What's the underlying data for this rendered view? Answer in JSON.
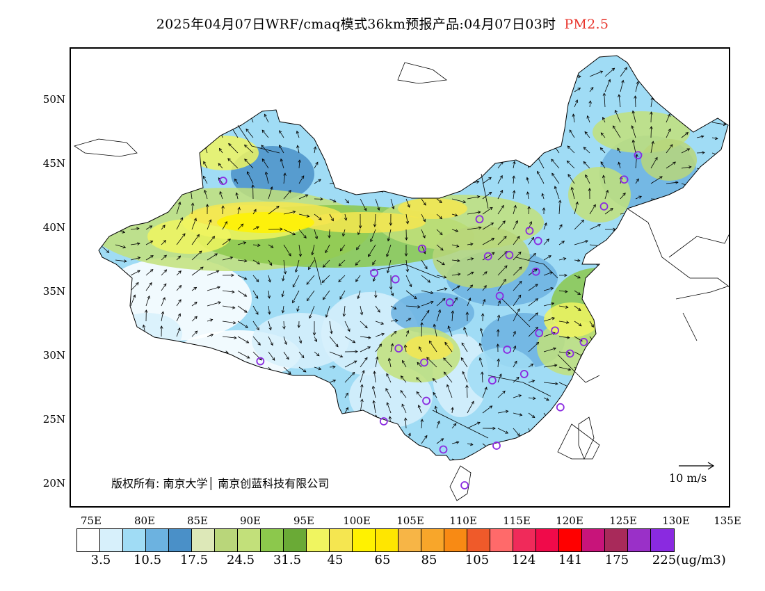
{
  "title": {
    "main": "2025年04月07日WRF/cmaq模式36km预报产品:04月07日03时",
    "variable": "PM2.5",
    "variable_color": "#e8332a"
  },
  "axes": {
    "lat_labels": [
      "50N",
      "45N",
      "40N",
      "35N",
      "30N",
      "25N",
      "20N"
    ],
    "lon_labels": [
      "75E",
      "80E",
      "85E",
      "90E",
      "95E",
      "100E",
      "105E",
      "110E",
      "115E",
      "120E",
      "125E",
      "130E",
      "135E"
    ]
  },
  "legend": {
    "colors": [
      "#ffffff",
      "#d7f0fb",
      "#a0dcf5",
      "#6cb2e0",
      "#4a90c8",
      "#dde8b8",
      "#b9d67a",
      "#c2e07a",
      "#8cc84c",
      "#6aaa36",
      "#f0f560",
      "#f5e650",
      "#fff200",
      "#ffe600",
      "#f7b546",
      "#f8a62a",
      "#f88a14",
      "#ef5a2a",
      "#ff6a6a",
      "#f02a5a",
      "#f00a4a",
      "#ff0000",
      "#c8147a",
      "#a82a5a",
      "#9a30c8",
      "#8a2ae0"
    ],
    "labels": [
      "3.5",
      "10.5",
      "17.5",
      "24.5",
      "31.5",
      "45",
      "65",
      "85",
      "105",
      "124",
      "141",
      "175",
      "225"
    ],
    "unit": "(ug/m3)"
  },
  "copyright": "版权所有: 南京大学│ 南京创蓝科技有限公司",
  "wind_scale": {
    "label": "10 m/s"
  },
  "stations": [
    {
      "lon": 87.6,
      "lat": 43.8
    },
    {
      "lon": 91.1,
      "lat": 29.7
    },
    {
      "lon": 101.8,
      "lat": 36.6
    },
    {
      "lon": 103.8,
      "lat": 36.1
    },
    {
      "lon": 106.3,
      "lat": 38.5
    },
    {
      "lon": 111.7,
      "lat": 40.8
    },
    {
      "lon": 112.5,
      "lat": 37.9
    },
    {
      "lon": 114.5,
      "lat": 38.0
    },
    {
      "lon": 116.4,
      "lat": 39.9
    },
    {
      "lon": 117.2,
      "lat": 39.1
    },
    {
      "lon": 117.0,
      "lat": 36.7
    },
    {
      "lon": 113.6,
      "lat": 34.8
    },
    {
      "lon": 108.9,
      "lat": 34.3
    },
    {
      "lon": 104.1,
      "lat": 30.7
    },
    {
      "lon": 106.5,
      "lat": 29.6
    },
    {
      "lon": 106.7,
      "lat": 26.6
    },
    {
      "lon": 102.7,
      "lat": 25.0
    },
    {
      "lon": 108.3,
      "lat": 22.8
    },
    {
      "lon": 113.3,
      "lat": 23.1
    },
    {
      "lon": 110.3,
      "lat": 20.0
    },
    {
      "lon": 112.9,
      "lat": 28.2
    },
    {
      "lon": 114.3,
      "lat": 30.6
    },
    {
      "lon": 115.9,
      "lat": 28.7
    },
    {
      "lon": 117.3,
      "lat": 31.9
    },
    {
      "lon": 118.8,
      "lat": 32.1
    },
    {
      "lon": 120.2,
      "lat": 30.3
    },
    {
      "lon": 121.5,
      "lat": 31.2
    },
    {
      "lon": 119.3,
      "lat": 26.1
    },
    {
      "lon": 123.4,
      "lat": 41.8
    },
    {
      "lon": 125.3,
      "lat": 43.9
    },
    {
      "lon": 126.6,
      "lat": 45.8
    }
  ]
}
